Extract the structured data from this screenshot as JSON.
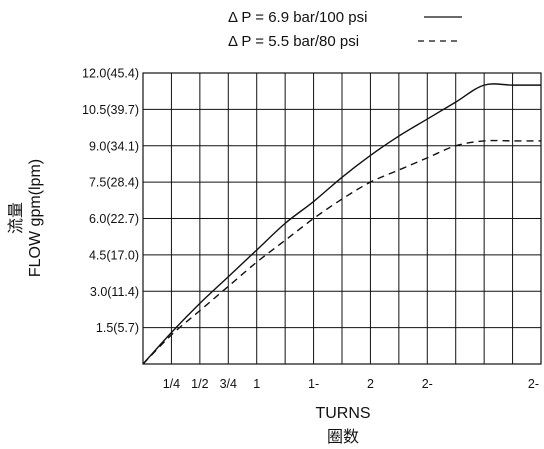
{
  "chart_data": {
    "type": "line",
    "legend": {
      "placement": "top-right",
      "entries": [
        {
          "label": "Δ P = 6.9 bar/100 psi",
          "line_style": "solid"
        },
        {
          "label": "Δ P = 5.5 bar/80 psi",
          "line_style": "dashed"
        }
      ]
    },
    "ylabel_cn": "流量",
    "ylabel": "FLOW gpm(lpm)",
    "xlabel": "TURNS",
    "xlabel_cn": "圈数",
    "grid": true,
    "ylim": [
      0,
      12.0
    ],
    "xlim": [
      0,
      3.5
    ],
    "y_ticks": [
      {
        "value": 1.5,
        "label": "1.5(5.7)"
      },
      {
        "value": 3.0,
        "label": "3.0(11.4)"
      },
      {
        "value": 4.5,
        "label": "4.5(17.0)"
      },
      {
        "value": 6.0,
        "label": "6.0(22.7)"
      },
      {
        "value": 7.5,
        "label": "7.5(28.4)"
      },
      {
        "value": 9.0,
        "label": "9.0(34.1)"
      },
      {
        "value": 10.5,
        "label": "10.5(39.7)"
      },
      {
        "value": 12.0,
        "label": "12.0(45.4)"
      }
    ],
    "x_ticks": [
      {
        "value": 0.25,
        "label": "1/4"
      },
      {
        "value": 0.5,
        "label": "1/2"
      },
      {
        "value": 0.75,
        "label": "3/4"
      },
      {
        "value": 1.0,
        "label": "1"
      },
      {
        "value": 1.5,
        "label": "1-"
      },
      {
        "value": 2.0,
        "label": "2"
      },
      {
        "value": 2.5,
        "label": "2-"
      },
      {
        "value": 2.75,
        "label": "2-"
      }
    ],
    "x_grid": [
      0.25,
      0.5,
      0.75,
      1.0,
      1.25,
      1.5,
      1.75,
      2.0,
      2.25,
      2.5,
      2.75,
      3.0,
      3.25
    ],
    "series": [
      {
        "line_style": "solid",
        "x": [
          0,
          0.25,
          0.5,
          0.75,
          1.0,
          1.25,
          1.5,
          1.75,
          2.0,
          2.25,
          2.5,
          2.75,
          3.0,
          3.25,
          3.5
        ],
        "y": [
          0,
          1.3,
          2.5,
          3.6,
          4.7,
          5.8,
          6.7,
          7.7,
          8.6,
          9.4,
          10.1,
          10.8,
          11.5,
          11.5,
          11.5
        ]
      },
      {
        "line_style": "dashed",
        "x": [
          0,
          0.25,
          0.5,
          0.75,
          1.0,
          1.25,
          1.5,
          1.75,
          2.0,
          2.25,
          2.5,
          2.75,
          3.0,
          3.25,
          3.5
        ],
        "y": [
          0,
          1.2,
          2.2,
          3.2,
          4.2,
          5.1,
          6.0,
          6.8,
          7.5,
          8.0,
          8.5,
          9.0,
          9.2,
          9.2,
          9.2
        ]
      }
    ]
  }
}
